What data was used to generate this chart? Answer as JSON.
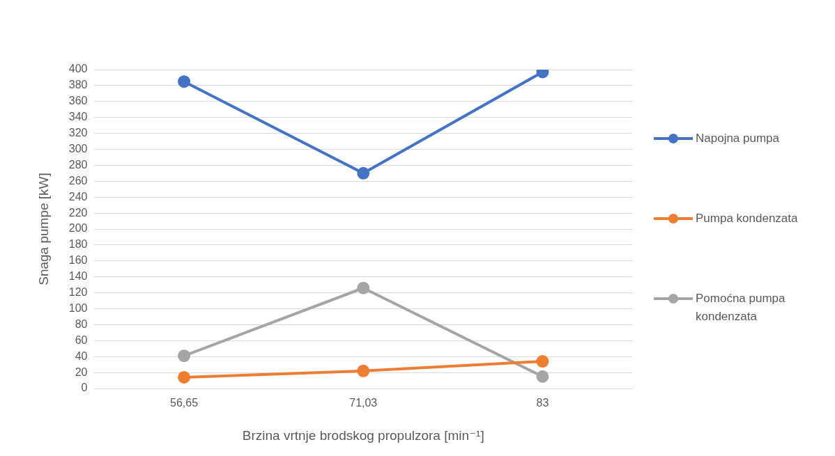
{
  "chart_data": {
    "type": "line",
    "xlabel": "Brzina vrtnje brodskog propulzora [min⁻¹]",
    "ylabel": "Snaga pumpe [kW]",
    "categories": [
      "56,65",
      "71,03",
      "83"
    ],
    "series": [
      {
        "name": "Napojna pumpa",
        "color": "#4472c4",
        "values": [
          385,
          270,
          397
        ]
      },
      {
        "name": "Pumpa kondenzata",
        "color": "#ed7d31",
        "values": [
          14,
          22,
          34
        ]
      },
      {
        "name": "Pomoćna pumpa kondenzata",
        "color": "#a5a5a5",
        "values": [
          41,
          126,
          15
        ]
      }
    ],
    "ylim": [
      0,
      400
    ],
    "yticks": [
      0,
      20,
      40,
      60,
      80,
      100,
      120,
      140,
      160,
      180,
      200,
      220,
      240,
      260,
      280,
      300,
      320,
      340,
      360,
      380,
      400
    ],
    "grid": "y",
    "legend": "right",
    "marker": "circle",
    "line_style": "solid"
  }
}
